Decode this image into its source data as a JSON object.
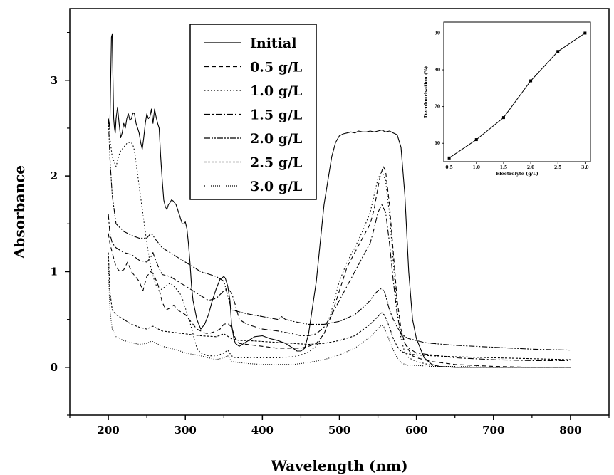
{
  "chart_data": [
    {
      "type": "line",
      "xlabel": "Wavelength (nm)",
      "ylabel": "Absorbance",
      "xlim": [
        150,
        850
      ],
      "ylim": [
        -0.5,
        3.75
      ],
      "xticks": [
        200,
        300,
        400,
        500,
        600,
        700,
        800
      ],
      "yticks": [
        0,
        1,
        2,
        3
      ],
      "legend_position": "top-center",
      "series": [
        {
          "name": "Initial",
          "dash": "solid",
          "x": [
            200,
            202,
            204,
            205,
            206,
            207,
            208,
            209,
            210,
            212,
            214,
            216,
            218,
            220,
            222,
            224,
            226,
            228,
            230,
            232,
            234,
            236,
            238,
            240,
            242,
            244,
            246,
            248,
            250,
            252,
            254,
            256,
            258,
            260,
            262,
            264,
            266,
            268,
            270,
            272,
            274,
            276,
            278,
            280,
            282,
            284,
            286,
            288,
            290,
            292,
            294,
            296,
            298,
            300,
            302,
            304,
            306,
            308,
            310,
            315,
            320,
            325,
            330,
            335,
            340,
            345,
            350,
            352,
            355,
            358,
            360,
            363,
            365,
            370,
            380,
            390,
            400,
            410,
            420,
            430,
            440,
            445,
            450,
            455,
            460,
            470,
            480,
            490,
            495,
            500,
            505,
            510,
            515,
            520,
            525,
            530,
            535,
            540,
            545,
            550,
            555,
            560,
            565,
            570,
            575,
            580,
            585,
            590,
            595,
            600,
            610,
            620,
            630,
            650,
            700,
            750,
            800
          ],
          "y": [
            2.6,
            2.5,
            3.45,
            3.48,
            3.0,
            2.6,
            2.5,
            2.45,
            2.6,
            2.72,
            2.55,
            2.4,
            2.45,
            2.55,
            2.5,
            2.6,
            2.65,
            2.58,
            2.6,
            2.66,
            2.65,
            2.55,
            2.5,
            2.45,
            2.35,
            2.28,
            2.4,
            2.55,
            2.65,
            2.6,
            2.62,
            2.7,
            2.55,
            2.7,
            2.62,
            2.55,
            2.5,
            2.2,
            1.95,
            1.75,
            1.68,
            1.65,
            1.7,
            1.72,
            1.75,
            1.74,
            1.72,
            1.7,
            1.65,
            1.6,
            1.55,
            1.5,
            1.5,
            1.52,
            1.45,
            1.3,
            1.1,
            0.85,
            0.7,
            0.5,
            0.4,
            0.45,
            0.55,
            0.7,
            0.82,
            0.92,
            0.95,
            0.93,
            0.85,
            0.7,
            0.45,
            0.3,
            0.25,
            0.22,
            0.27,
            0.32,
            0.33,
            0.3,
            0.28,
            0.25,
            0.2,
            0.17,
            0.17,
            0.2,
            0.35,
            0.9,
            1.7,
            2.2,
            2.35,
            2.42,
            2.44,
            2.45,
            2.46,
            2.45,
            2.47,
            2.46,
            2.46,
            2.47,
            2.46,
            2.47,
            2.48,
            2.46,
            2.47,
            2.45,
            2.43,
            2.3,
            1.8,
            1.0,
            0.5,
            0.3,
            0.1,
            0.03,
            0.01,
            0.0,
            0.0,
            0.0,
            0.0
          ]
        },
        {
          "name": "0.5 g/L",
          "dash": "6 4",
          "x": [
            200,
            202,
            205,
            210,
            215,
            220,
            225,
            230,
            235,
            240,
            245,
            250,
            255,
            258,
            260,
            265,
            270,
            275,
            280,
            285,
            290,
            300,
            305,
            310,
            315,
            320,
            325,
            330,
            340,
            345,
            350,
            355,
            360,
            363,
            365,
            370,
            380,
            400,
            420,
            440,
            450,
            460,
            470,
            480,
            490,
            500,
            510,
            520,
            530,
            540,
            545,
            550,
            553,
            555,
            557,
            560,
            565,
            570,
            575,
            580,
            585,
            590,
            595,
            600,
            610,
            620,
            630,
            650,
            700,
            750,
            800
          ],
          "y": [
            1.4,
            1.3,
            1.2,
            1.05,
            1.0,
            1.02,
            1.1,
            1.0,
            0.95,
            0.9,
            0.8,
            0.95,
            1.0,
            0.98,
            0.95,
            0.85,
            0.68,
            0.6,
            0.62,
            0.65,
            0.6,
            0.55,
            0.5,
            0.45,
            0.4,
            0.38,
            0.36,
            0.35,
            0.38,
            0.4,
            0.45,
            0.46,
            0.42,
            0.35,
            0.3,
            0.25,
            0.24,
            0.22,
            0.2,
            0.2,
            0.2,
            0.22,
            0.25,
            0.35,
            0.55,
            0.8,
            1.05,
            1.2,
            1.35,
            1.5,
            1.65,
            1.88,
            2.0,
            2.05,
            2.1,
            2.05,
            1.7,
            1.2,
            0.7,
            0.4,
            0.25,
            0.18,
            0.12,
            0.1,
            0.08,
            0.06,
            0.05,
            0.03,
            0.01,
            0.0,
            0.0
          ]
        },
        {
          "name": "1.0 g/L",
          "dash": "1.5 3",
          "x": [
            200,
            202,
            205,
            210,
            215,
            220,
            225,
            230,
            233,
            235,
            240,
            245,
            250,
            255,
            260,
            265,
            270,
            275,
            280,
            285,
            290,
            295,
            300,
            305,
            310,
            315,
            320,
            330,
            340,
            350,
            355,
            360,
            365,
            370,
            380,
            400,
            420,
            440,
            450,
            460,
            470,
            480,
            490,
            500,
            510,
            520,
            530,
            540,
            545,
            550,
            555,
            560,
            565,
            570,
            575,
            580,
            585,
            590,
            595,
            600,
            610,
            620,
            630,
            650,
            700,
            750,
            800
          ],
          "y": [
            2.6,
            2.4,
            2.2,
            2.1,
            2.25,
            2.3,
            2.35,
            2.35,
            2.3,
            2.2,
            1.9,
            1.6,
            1.3,
            1.05,
            0.9,
            0.8,
            0.82,
            0.85,
            0.88,
            0.85,
            0.8,
            0.75,
            0.62,
            0.5,
            0.35,
            0.2,
            0.15,
            0.12,
            0.12,
            0.15,
            0.18,
            0.12,
            0.1,
            0.1,
            0.1,
            0.1,
            0.1,
            0.11,
            0.13,
            0.16,
            0.22,
            0.35,
            0.6,
            0.9,
            1.1,
            1.25,
            1.42,
            1.62,
            1.8,
            1.97,
            2.05,
            1.95,
            1.6,
            1.1,
            0.6,
            0.3,
            0.15,
            0.1,
            0.08,
            0.06,
            0.04,
            0.02,
            0.01,
            0.0,
            0.0,
            0.0,
            0.0
          ]
        },
        {
          "name": "1.5 g/L",
          "dash": "8 3 2 3",
          "x": [
            200,
            202,
            205,
            210,
            220,
            230,
            240,
            250,
            255,
            258,
            260,
            265,
            270,
            280,
            290,
            300,
            310,
            320,
            330,
            340,
            350,
            355,
            360,
            365,
            370,
            380,
            400,
            420,
            440,
            450,
            460,
            470,
            480,
            490,
            500,
            510,
            520,
            530,
            540,
            545,
            550,
            555,
            560,
            565,
            570,
            575,
            580,
            585,
            590,
            600,
            620,
            650,
            700,
            750,
            800
          ],
          "y": [
            1.6,
            1.4,
            1.3,
            1.25,
            1.2,
            1.18,
            1.12,
            1.1,
            1.15,
            1.2,
            1.15,
            1.05,
            0.97,
            0.95,
            0.9,
            0.85,
            0.8,
            0.75,
            0.7,
            0.72,
            0.8,
            0.82,
            0.78,
            0.65,
            0.5,
            0.45,
            0.4,
            0.38,
            0.35,
            0.33,
            0.33,
            0.35,
            0.42,
            0.55,
            0.7,
            0.85,
            1.0,
            1.15,
            1.3,
            1.45,
            1.62,
            1.7,
            1.62,
            1.3,
            0.9,
            0.55,
            0.35,
            0.25,
            0.2,
            0.15,
            0.13,
            0.1,
            0.08,
            0.07,
            0.07
          ]
        },
        {
          "name": "2.0 g/L",
          "dash": "8 2 2 2 2 2",
          "x": [
            200,
            202,
            205,
            210,
            220,
            230,
            240,
            250,
            255,
            258,
            260,
            265,
            270,
            280,
            290,
            300,
            320,
            340,
            350,
            360,
            370,
            380,
            400,
            420,
            425,
            430,
            440,
            460,
            480,
            500,
            520,
            530,
            540,
            545,
            550,
            553,
            555,
            558,
            560,
            565,
            570,
            575,
            580,
            585,
            590,
            600,
            610,
            620,
            650,
            700,
            750,
            800
          ],
          "y": [
            2.6,
            2.2,
            1.8,
            1.5,
            1.42,
            1.38,
            1.35,
            1.35,
            1.4,
            1.38,
            1.35,
            1.3,
            1.25,
            1.2,
            1.15,
            1.1,
            1.0,
            0.95,
            0.9,
            0.6,
            0.58,
            0.56,
            0.53,
            0.5,
            0.53,
            0.5,
            0.48,
            0.45,
            0.45,
            0.48,
            0.55,
            0.62,
            0.7,
            0.76,
            0.8,
            0.82,
            0.82,
            0.8,
            0.75,
            0.6,
            0.5,
            0.42,
            0.36,
            0.32,
            0.3,
            0.28,
            0.26,
            0.25,
            0.23,
            0.21,
            0.19,
            0.18
          ]
        },
        {
          "name": "2.5 g/L",
          "dash": "3 2",
          "x": [
            200,
            202,
            205,
            210,
            220,
            230,
            240,
            250,
            255,
            258,
            260,
            265,
            270,
            280,
            290,
            300,
            320,
            340,
            350,
            360,
            370,
            380,
            400,
            420,
            440,
            460,
            480,
            500,
            520,
            540,
            550,
            553,
            555,
            558,
            560,
            565,
            570,
            575,
            580,
            585,
            590,
            600,
            620,
            650,
            700,
            750,
            800
          ],
          "y": [
            1.2,
            0.8,
            0.6,
            0.55,
            0.5,
            0.45,
            0.42,
            0.4,
            0.42,
            0.43,
            0.42,
            0.4,
            0.38,
            0.37,
            0.36,
            0.35,
            0.33,
            0.32,
            0.35,
            0.3,
            0.28,
            0.28,
            0.27,
            0.26,
            0.25,
            0.24,
            0.25,
            0.28,
            0.33,
            0.45,
            0.53,
            0.56,
            0.57,
            0.55,
            0.52,
            0.42,
            0.3,
            0.22,
            0.17,
            0.15,
            0.14,
            0.13,
            0.12,
            0.11,
            0.1,
            0.09,
            0.08
          ]
        },
        {
          "name": "3.0 g/L",
          "dash": "1 2",
          "x": [
            200,
            202,
            205,
            210,
            220,
            230,
            240,
            250,
            255,
            258,
            260,
            265,
            270,
            280,
            290,
            300,
            320,
            340,
            350,
            355,
            360,
            370,
            380,
            400,
            420,
            440,
            460,
            480,
            500,
            520,
            540,
            550,
            553,
            555,
            558,
            560,
            565,
            570,
            575,
            580,
            585,
            590,
            600,
            620,
            650,
            700,
            750,
            800
          ],
          "y": [
            1.05,
            0.6,
            0.4,
            0.32,
            0.28,
            0.26,
            0.24,
            0.25,
            0.27,
            0.27,
            0.26,
            0.24,
            0.22,
            0.2,
            0.18,
            0.15,
            0.12,
            0.08,
            0.1,
            0.12,
            0.06,
            0.05,
            0.04,
            0.03,
            0.03,
            0.03,
            0.05,
            0.08,
            0.13,
            0.2,
            0.32,
            0.4,
            0.43,
            0.44,
            0.42,
            0.38,
            0.28,
            0.18,
            0.1,
            0.05,
            0.03,
            0.02,
            0.02,
            0.01,
            0.01,
            0.0,
            0.0,
            0.0
          ]
        }
      ]
    },
    {
      "type": "line",
      "xlabel": "Electrolyte (g/L)",
      "ylabel": "Decolourisation (%)",
      "xlim": [
        0.4,
        3.1
      ],
      "ylim": [
        55,
        93
      ],
      "xticks": [
        0.5,
        1.0,
        1.5,
        2.0,
        2.5,
        3.0
      ],
      "yticks": [
        60,
        70,
        80,
        90
      ],
      "series": [
        {
          "x": [
            0.5,
            1.0,
            1.5,
            2.0,
            2.5,
            3.0
          ],
          "y": [
            56,
            61,
            67,
            77,
            85,
            90
          ]
        }
      ]
    }
  ]
}
